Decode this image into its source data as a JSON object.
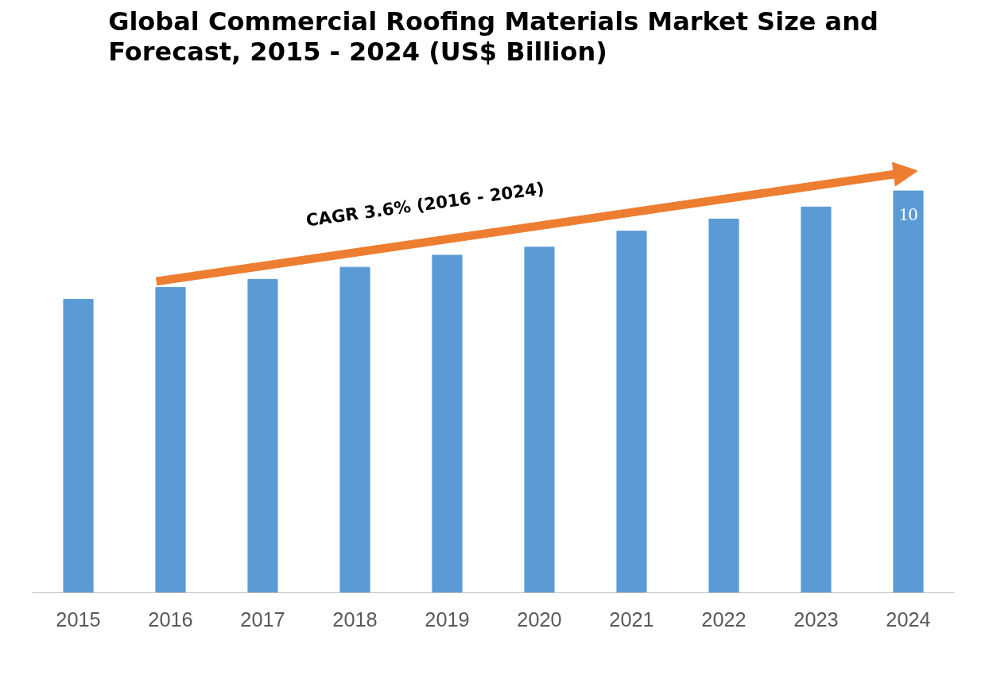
{
  "chart_data": {
    "type": "bar",
    "title": "Global Commercial Roofing Materials Market Size and Forecast, 2015 - 2024 (US$ Billion)",
    "categories": [
      "2015",
      "2016",
      "2017",
      "2018",
      "2019",
      "2020",
      "2021",
      "2022",
      "2023",
      "2024"
    ],
    "values": [
      7.3,
      7.6,
      7.8,
      8.1,
      8.4,
      8.6,
      9.0,
      9.3,
      9.6,
      10
    ],
    "value_labels": [
      null,
      null,
      null,
      null,
      null,
      null,
      null,
      null,
      null,
      "10"
    ],
    "color": "#5b9bd5",
    "annotations": [
      "CAGR 3.6% (2016 - 2024)"
    ]
  }
}
